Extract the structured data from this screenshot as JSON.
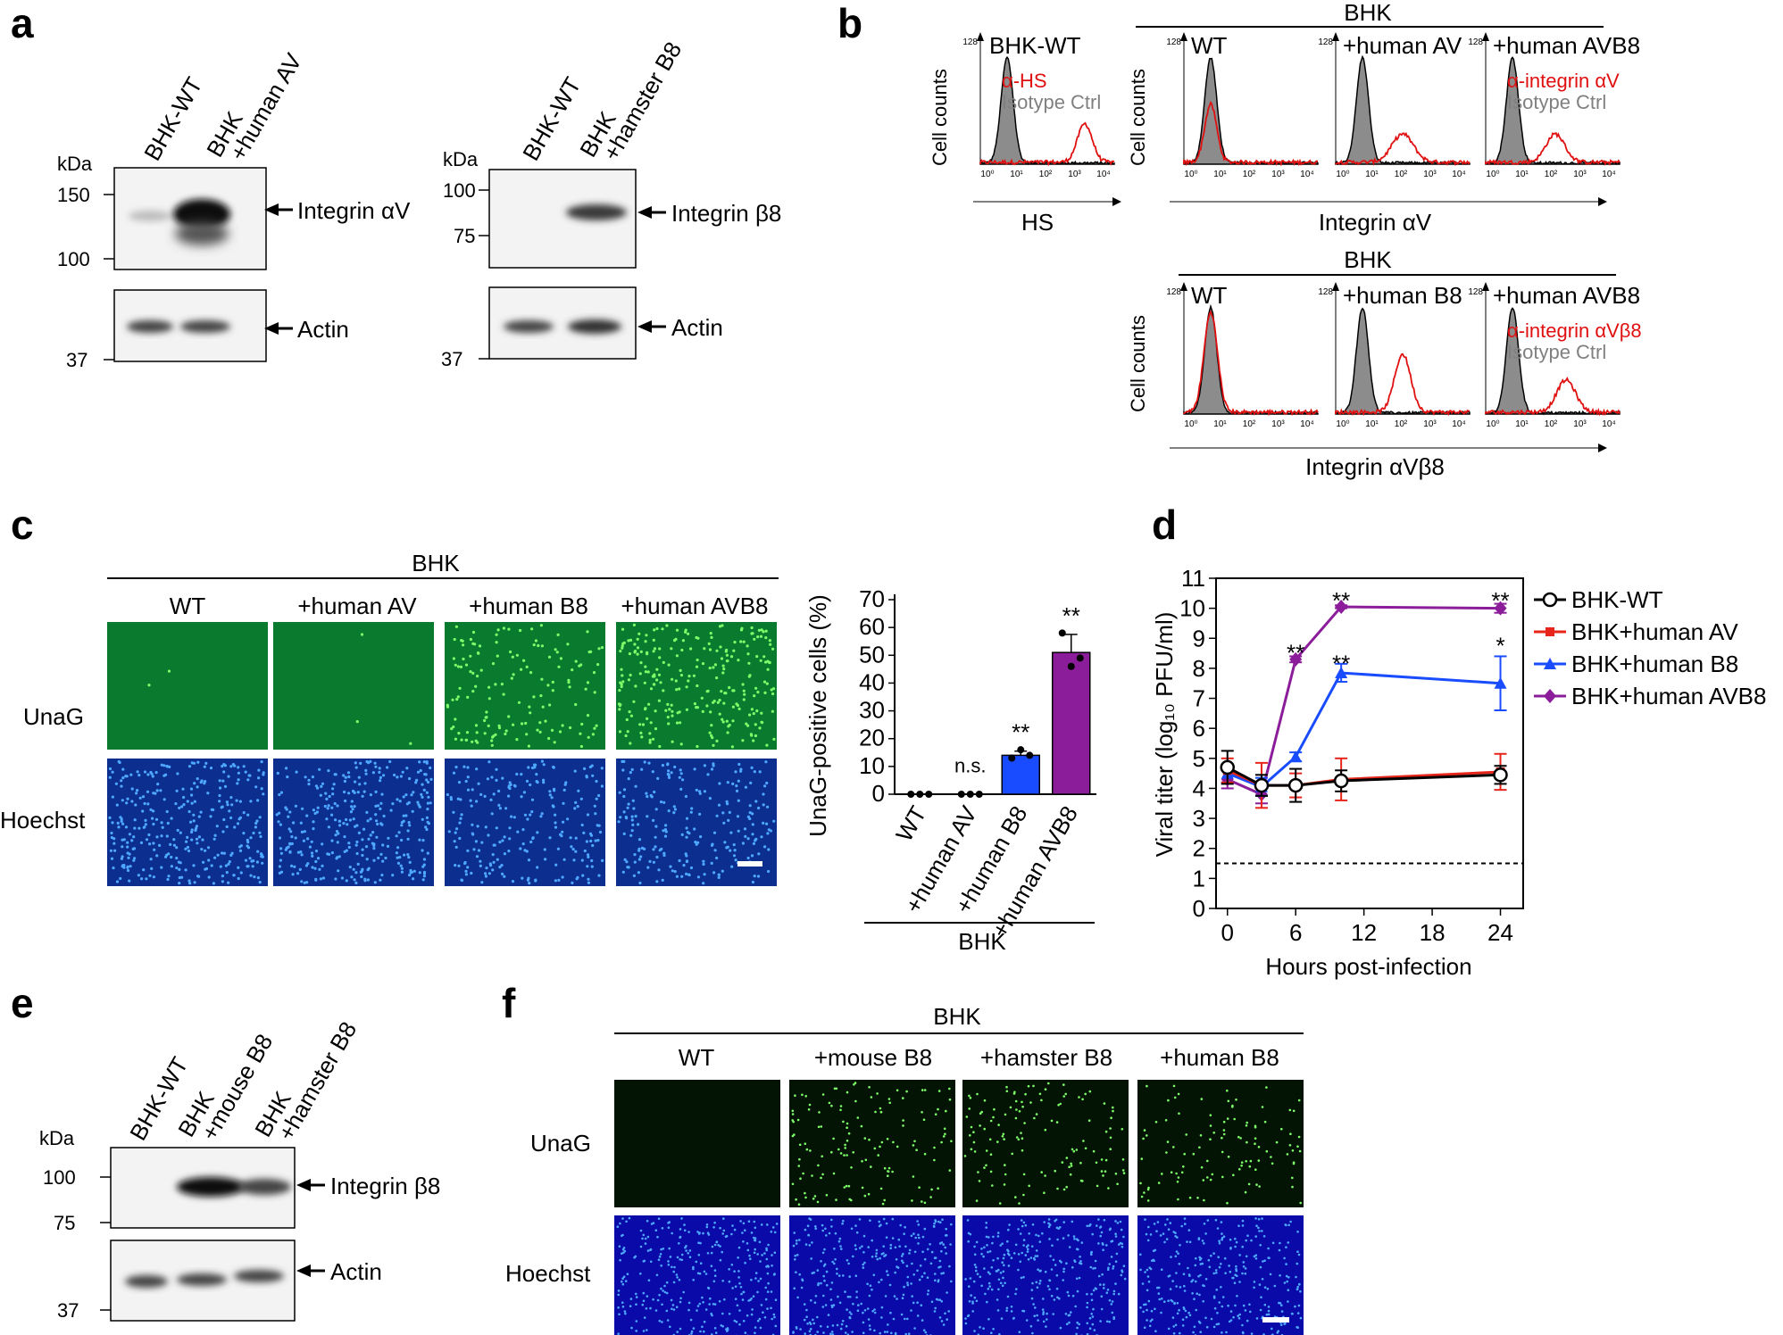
{
  "panel_letters": {
    "a": "a",
    "b": "b",
    "c": "c",
    "d": "d",
    "e": "e",
    "f": "f"
  },
  "panel_a": {
    "blot1": {
      "lanes": [
        "BHK-WT",
        "BHK",
        "+human AV"
      ],
      "kda": "kDa",
      "markers_top": [
        "150",
        "100"
      ],
      "markers_bottom": [
        "37"
      ],
      "band_label_top": "Integrin αV",
      "band_label_bottom": "Actin"
    },
    "blot2": {
      "lanes": [
        "BHK-WT",
        "BHK",
        "+hamster B8"
      ],
      "kda": "kDa",
      "markers_top": [
        "100",
        "75"
      ],
      "markers_bottom": [
        "37"
      ],
      "band_label_top": "Integrin β8",
      "band_label_bottom": "Actin"
    }
  },
  "panel_b": {
    "hs": {
      "title": "BHK-WT",
      "legend_red": "α-HS",
      "legend_gray": "Isotype Ctrl",
      "xlabel": "HS",
      "ylabel": "Cell counts"
    },
    "row1": {
      "group": "BHK",
      "titles": [
        "WT",
        "+human AV",
        "+human AVB8"
      ],
      "legend_red": "α-integrin αV",
      "legend_gray": "Isotype Ctrl",
      "xlabel": "Integrin αV",
      "ylabel": "Cell counts"
    },
    "row2": {
      "group": "BHK",
      "titles": [
        "WT",
        "+human B8",
        "+human AVB8"
      ],
      "legend_red": "α-integrin αVβ8",
      "legend_gray": "Isotype Ctrl",
      "xlabel": "Integrin αVβ8",
      "ylabel": "Cell counts"
    },
    "y_tick": "128",
    "x_ticks": [
      "10⁰",
      "10¹",
      "10²",
      "10³",
      "10⁴"
    ],
    "colors": {
      "red": "#e01010",
      "gray": "#808080"
    }
  },
  "panel_c": {
    "group": "BHK",
    "columns": [
      "WT",
      "+human AV",
      "+human B8",
      "+human AVB8"
    ],
    "rows": [
      "UnaG",
      "Hoechst"
    ]
  },
  "panel_f": {
    "group": "BHK",
    "columns": [
      "WT",
      "+mouse B8",
      "+hamster B8",
      "+human B8"
    ],
    "rows": [
      "UnaG",
      "Hoechst"
    ]
  },
  "panel_e": {
    "lanes": [
      "BHK-WT",
      "BHK",
      "+mouse B8",
      "BHK",
      "+hamster B8"
    ],
    "kda": "kDa",
    "markers_top": [
      "100",
      "75"
    ],
    "markers_bottom": [
      "37"
    ],
    "band_label_top": "Integrin β8",
    "band_label_bottom": "Actin"
  },
  "chart_data": [
    {
      "type": "bar",
      "ylabel": "UnaG-positive cells (%)",
      "categories": [
        "WT",
        "+human AV",
        "+human B8",
        "+human AVB8"
      ],
      "group_label": "BHK",
      "values": [
        0,
        0,
        14,
        51
      ],
      "errors": [
        0,
        0,
        1.5,
        6.5
      ],
      "points": [
        [
          0,
          0,
          0
        ],
        [
          0,
          0,
          0
        ],
        [
          13,
          16,
          14
        ],
        [
          58,
          46,
          49
        ]
      ],
      "annotations": [
        "",
        "n.s.",
        "**",
        "**"
      ],
      "colors": [
        "#1a4cff",
        "#8b1c9a"
      ],
      "ylim": [
        0,
        70
      ],
      "yticks": [
        0,
        10,
        20,
        30,
        40,
        50,
        60,
        70
      ]
    },
    {
      "type": "line",
      "xlabel": "Hours post-infection",
      "ylabel": "Viral titer (log₁₀ PFU/ml)",
      "xlim": [
        -1,
        26
      ],
      "ylim": [
        0,
        11
      ],
      "xticks": [
        0,
        6,
        12,
        18,
        24
      ],
      "yticks": [
        0,
        1,
        2,
        3,
        4,
        5,
        6,
        7,
        8,
        9,
        10,
        11
      ],
      "detection_limit": 1.5,
      "x": [
        0,
        3,
        6,
        10,
        24
      ],
      "series": [
        {
          "name": "BHK-WT",
          "color": "#000000",
          "marker": "circle",
          "values": [
            4.7,
            4.1,
            4.1,
            4.25,
            4.45
          ],
          "errors": [
            0.55,
            0.35,
            0.55,
            0.35,
            0.3
          ]
        },
        {
          "name": "BHK+human AV",
          "color": "#e8251a",
          "marker": "square",
          "values": [
            4.6,
            4.1,
            4.1,
            4.3,
            4.55
          ],
          "errors": [
            0.4,
            0.75,
            0.4,
            0.7,
            0.6
          ]
        },
        {
          "name": "BHK+human B8",
          "color": "#1a4cff",
          "marker": "triangle",
          "values": [
            4.5,
            4.05,
            5.05,
            7.85,
            7.5
          ],
          "errors": [
            0.3,
            0.3,
            0.15,
            0.3,
            0.9
          ]
        },
        {
          "name": "BHK+human AVB8",
          "color": "#8b1c9a",
          "marker": "diamond",
          "values": [
            4.3,
            3.8,
            8.3,
            10.05,
            10.0
          ],
          "errors": [
            0.3,
            0.3,
            0.1,
            0.05,
            0.15
          ]
        }
      ],
      "annotations": [
        {
          "x": 6,
          "y": 8.6,
          "text": "**"
        },
        {
          "x": 10,
          "y": 10.35,
          "text": "**"
        },
        {
          "x": 10,
          "y": 8.25,
          "text": "**"
        },
        {
          "x": 24,
          "y": 10.35,
          "text": "**"
        },
        {
          "x": 24,
          "y": 8.85,
          "text": "*"
        }
      ]
    }
  ]
}
